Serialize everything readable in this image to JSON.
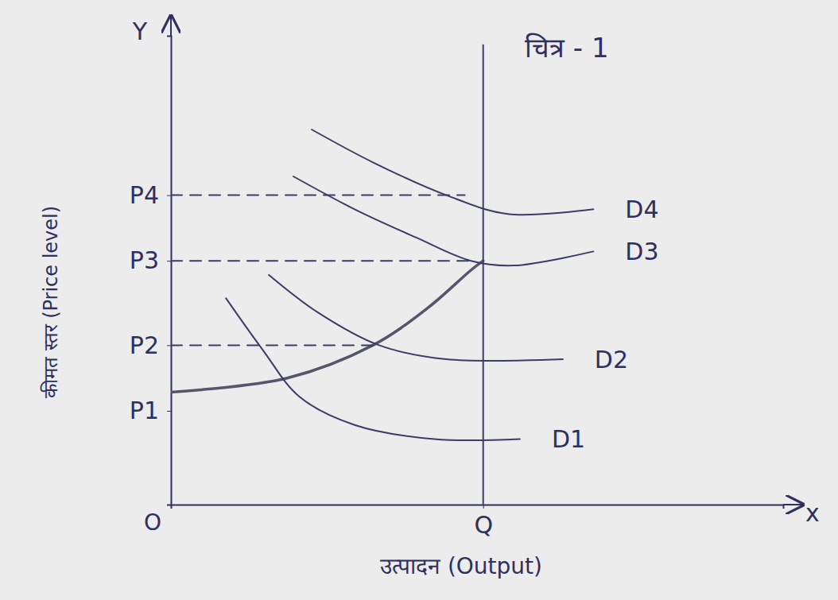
{
  "chart_data": {
    "type": "line",
    "title": "चित्र - 1",
    "x_label": "उत्पादन (Output)",
    "y_label": "कीमत स्तर (Price level)",
    "origin": "O",
    "x_axis_end": "x",
    "y_axis_end": "Y",
    "xlim": [
      0,
      100
    ],
    "ylim": [
      0,
      100
    ],
    "xticks": [
      {
        "value": 51,
        "label": "Q"
      }
    ],
    "yticks": [
      {
        "value": 20,
        "label": "P1"
      },
      {
        "value": 34,
        "label": "P2"
      },
      {
        "value": 52,
        "label": "P3"
      },
      {
        "value": 66,
        "label": "P4"
      }
    ],
    "grid": false,
    "tick_labels": true,
    "series": [
      {
        "x": [
          0,
          19,
          33,
          42,
          49,
          51
        ],
        "values": [
          24,
          27,
          34,
          42,
          50,
          52
        ],
        "color": "#55566a"
      },
      {
        "x": [
          51,
          51
        ],
        "values": [
          0,
          98
        ],
        "color": "#3a3d66"
      },
      {
        "name": "D1",
        "x": [
          9,
          15,
          21,
          30,
          43,
          57
        ],
        "values": [
          44,
          33,
          23,
          17,
          14,
          14
        ],
        "color": "#3a3d66"
      },
      {
        "name": "D2",
        "x": [
          16,
          24,
          34,
          45,
          64
        ],
        "values": [
          49,
          41,
          34,
          31,
          31
        ],
        "color": "#3a3d66"
      },
      {
        "name": "D3",
        "x": [
          20,
          30,
          40,
          49,
          56,
          69
        ],
        "values": [
          70,
          63,
          57,
          52,
          51,
          54
        ],
        "color": "#3a3d66"
      },
      {
        "name": "D4",
        "x": [
          23,
          33,
          45,
          55,
          69
        ],
        "values": [
          80,
          73,
          66,
          62,
          63
        ],
        "color": "#3a3d66"
      },
      {
        "x": [
          0,
          33
        ],
        "values": [
          34,
          34
        ],
        "color": "#3a3d66",
        "line_style": "dashed"
      },
      {
        "x": [
          0,
          49
        ],
        "values": [
          52,
          52
        ],
        "color": "#3a3d66",
        "line_style": "dashed"
      },
      {
        "x": [
          0,
          48
        ],
        "values": [
          66,
          66
        ],
        "color": "#3a3d66",
        "line_style": "dashed"
      }
    ]
  }
}
